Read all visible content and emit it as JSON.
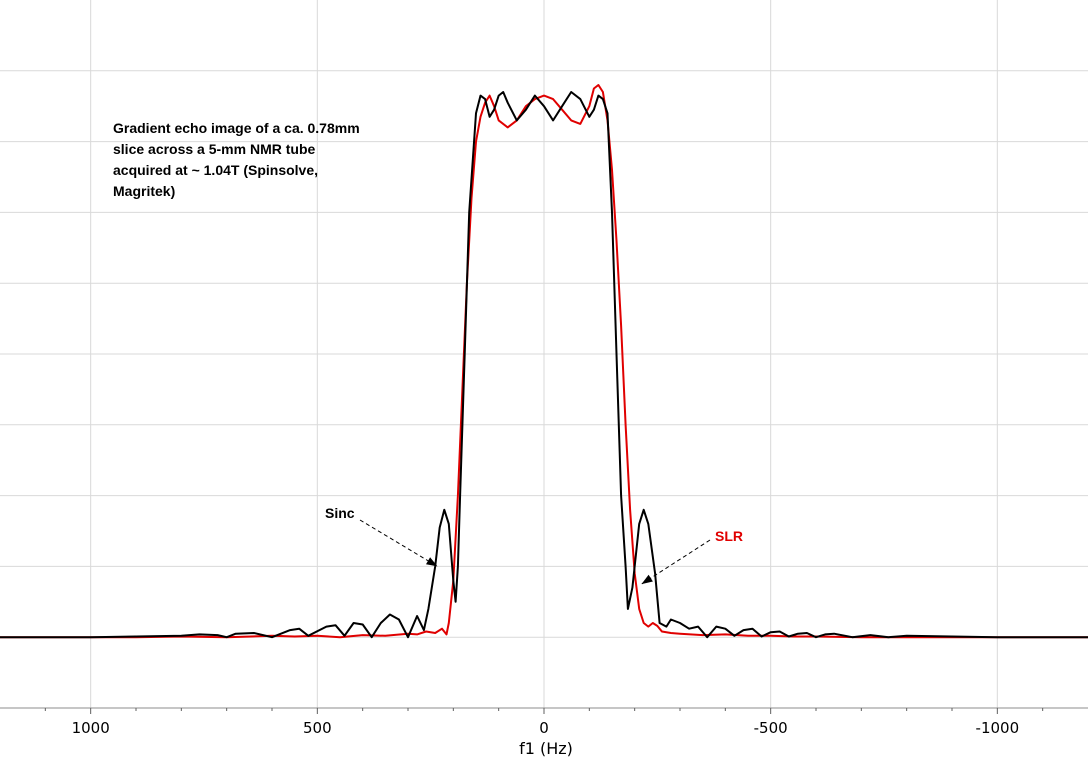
{
  "chart_data": {
    "type": "line",
    "xlabel": "f1 (Hz)",
    "xlim": [
      1200,
      -1200
    ],
    "ylim": [
      -0.1,
      0.9
    ],
    "x_reversed": true,
    "xticks": [
      1000,
      500,
      0,
      -500,
      -1000
    ],
    "xtick_labels": [
      "1000",
      "500",
      "0",
      "-500",
      "-1000"
    ],
    "xgrid": [
      1000,
      500,
      0,
      -500,
      -1000
    ],
    "ygrid": [
      0.0,
      0.1,
      0.2,
      0.3,
      0.4,
      0.5,
      0.6,
      0.7,
      0.8
    ],
    "grid": true,
    "annotation": "Gradient echo image of a ca. 0.78mm slice across a 5-mm NMR tube acquired at ~ 1.04T (Spinsolve, Magritek)",
    "annotation_lines": [
      "Gradient echo image of a ca. 0.78mm",
      "slice across a 5-mm NMR tube",
      "acquired at ~ 1.04T (Spinsolve,",
      "Magritek)"
    ],
    "series": [
      {
        "name": "Sinc",
        "color": "#000000",
        "x": [
          1200,
          1100,
          1000,
          900,
          800,
          760,
          720,
          700,
          680,
          640,
          600,
          560,
          540,
          520,
          480,
          460,
          440,
          420,
          400,
          380,
          360,
          340,
          320,
          300,
          280,
          265,
          255,
          240,
          230,
          220,
          210,
          200,
          195,
          190,
          185,
          175,
          165,
          150,
          140,
          130,
          120,
          110,
          100,
          90,
          80,
          60,
          40,
          20,
          0,
          -20,
          -40,
          -60,
          -80,
          -100,
          -110,
          -120,
          -130,
          -140,
          -150,
          -160,
          -170,
          -180,
          -185,
          -195,
          -210,
          -220,
          -230,
          -245,
          -255,
          -270,
          -280,
          -300,
          -320,
          -340,
          -360,
          -380,
          -400,
          -420,
          -440,
          -460,
          -480,
          -500,
          -520,
          -540,
          -560,
          -580,
          -600,
          -620,
          -640,
          -680,
          -720,
          -760,
          -800,
          -900,
          -1000,
          -1100,
          -1200
        ],
        "y": [
          0.0,
          0.0,
          0.0,
          0.001,
          0.002,
          0.004,
          0.003,
          0.0,
          0.005,
          0.006,
          0.0,
          0.01,
          0.012,
          0.002,
          0.015,
          0.017,
          0.002,
          0.02,
          0.018,
          0.0,
          0.02,
          0.032,
          0.025,
          0.0,
          0.03,
          0.01,
          0.04,
          0.1,
          0.155,
          0.18,
          0.16,
          0.08,
          0.05,
          0.1,
          0.2,
          0.4,
          0.6,
          0.74,
          0.765,
          0.76,
          0.735,
          0.745,
          0.765,
          0.77,
          0.755,
          0.73,
          0.745,
          0.765,
          0.75,
          0.73,
          0.75,
          0.77,
          0.76,
          0.735,
          0.745,
          0.765,
          0.76,
          0.74,
          0.6,
          0.4,
          0.2,
          0.1,
          0.04,
          0.07,
          0.16,
          0.18,
          0.16,
          0.09,
          0.02,
          0.015,
          0.025,
          0.02,
          0.012,
          0.015,
          0.0,
          0.015,
          0.012,
          0.002,
          0.01,
          0.012,
          0.001,
          0.007,
          0.008,
          0.001,
          0.005,
          0.006,
          0.0,
          0.004,
          0.005,
          0.0,
          0.003,
          0.0,
          0.002,
          0.001,
          0.0,
          0.0,
          0.0
        ]
      },
      {
        "name": "SLR",
        "color": "#e00000",
        "x": [
          1200,
          1100,
          1000,
          900,
          800,
          700,
          600,
          550,
          500,
          450,
          400,
          350,
          300,
          280,
          260,
          240,
          225,
          215,
          210,
          200,
          190,
          180,
          170,
          160,
          150,
          140,
          130,
          120,
          110,
          100,
          80,
          60,
          40,
          20,
          0,
          -20,
          -40,
          -60,
          -80,
          -100,
          -110,
          -120,
          -130,
          -140,
          -150,
          -160,
          -170,
          -180,
          -190,
          -200,
          -210,
          -220,
          -230,
          -240,
          -250,
          -260,
          -280,
          -300,
          -350,
          -400,
          -450,
          -500,
          -550,
          -600,
          -700,
          -800,
          -900,
          -1000,
          -1100,
          -1200
        ],
        "y": [
          0.0,
          0.0,
          0.0,
          0.0,
          0.001,
          0.0,
          0.002,
          0.001,
          0.002,
          0.0,
          0.003,
          0.002,
          0.005,
          0.004,
          0.008,
          0.006,
          0.012,
          0.004,
          0.02,
          0.08,
          0.2,
          0.35,
          0.5,
          0.62,
          0.7,
          0.735,
          0.755,
          0.765,
          0.75,
          0.73,
          0.72,
          0.73,
          0.75,
          0.76,
          0.765,
          0.76,
          0.745,
          0.73,
          0.725,
          0.75,
          0.775,
          0.78,
          0.77,
          0.73,
          0.66,
          0.56,
          0.44,
          0.3,
          0.18,
          0.09,
          0.04,
          0.02,
          0.015,
          0.02,
          0.016,
          0.008,
          0.006,
          0.005,
          0.003,
          0.004,
          0.002,
          0.002,
          0.001,
          0.001,
          0.0,
          0.0,
          0.0,
          0.0,
          0.0,
          0.0
        ]
      }
    ],
    "labels": [
      {
        "text": "Sinc",
        "color": "#000000",
        "arrow_to_x": 235,
        "arrow_to_y": 0.1
      },
      {
        "text": "SLR",
        "color": "#e00000",
        "arrow_to_x": -215,
        "arrow_to_y": 0.075
      }
    ]
  }
}
